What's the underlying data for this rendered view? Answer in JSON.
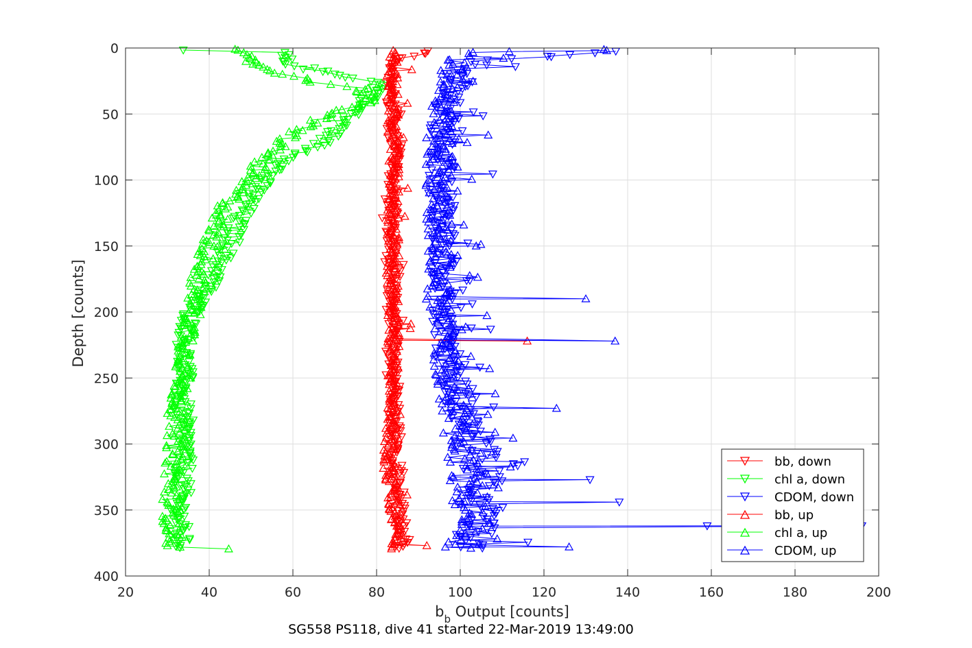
{
  "chart_data": {
    "type": "scatter",
    "xlabel_main": "b",
    "xlabel_sub": "b",
    "xlabel_rest": " Output [counts]",
    "ylabel": "Depth [counts]",
    "caption": "SG558 PS118, dive 41 started 22-Mar-2019 13:49:00",
    "xlim": [
      20,
      200
    ],
    "ylim": [
      0,
      400
    ],
    "y_reversed": true,
    "grid": true,
    "legend_position": "bottom-right",
    "x_ticks": [
      "20",
      "40",
      "60",
      "80",
      "100",
      "120",
      "140",
      "160",
      "180",
      "200"
    ],
    "y_ticks": [
      "0",
      "50",
      "100",
      "150",
      "200",
      "250",
      "300",
      "350",
      "400"
    ],
    "series": [
      {
        "name": "bb, down",
        "color": "#FF0000",
        "marker": "triangle-down",
        "x": [
          93,
          84,
          84,
          83.5,
          83,
          85,
          83.5,
          84,
          86,
          84,
          83,
          84.5,
          83.5,
          84,
          83.5,
          84,
          83,
          84.5,
          83.5,
          84,
          83.5,
          84,
          84.5,
          83.5,
          84,
          83.5,
          85,
          84.5,
          84,
          85,
          85,
          84.5,
          85.5,
          85,
          86,
          85.5,
          86,
          86.5,
          86,
          87,
          86,
          86
        ],
        "y": [
          2,
          10,
          20,
          30,
          40,
          50,
          60,
          70,
          80,
          90,
          100,
          110,
          120,
          130,
          140,
          150,
          160,
          170,
          180,
          190,
          200,
          210,
          222,
          230,
          240,
          250,
          260,
          270,
          280,
          290,
          300,
          310,
          320,
          330,
          340,
          350,
          355,
          360,
          365,
          370,
          375,
          379
        ]
      },
      {
        "name": "chl a, down",
        "color": "#00FF00",
        "marker": "triangle-down",
        "x": [
          57,
          58,
          63,
          70,
          80,
          81,
          78,
          74,
          71,
          68,
          62,
          57,
          53,
          51,
          49,
          47,
          46,
          45,
          44,
          43,
          42,
          40,
          38,
          36,
          35,
          34.5,
          34,
          34,
          34,
          33.5,
          33.5,
          34,
          34,
          34.5,
          34,
          34,
          33.5,
          33.5,
          33,
          33,
          33.5
        ],
        "y": [
          2,
          10,
          15,
          20,
          25,
          30,
          40,
          50,
          60,
          70,
          80,
          90,
          100,
          110,
          120,
          130,
          140,
          150,
          155,
          160,
          170,
          180,
          190,
          200,
          210,
          220,
          230,
          240,
          250,
          260,
          270,
          280,
          290,
          300,
          310,
          320,
          330,
          340,
          350,
          360,
          379
        ]
      },
      {
        "name": "CDOM, down",
        "color": "#0000FF",
        "marker": "triangle-down",
        "x": [
          141,
          105,
          101,
          99,
          97,
          97,
          96,
          96,
          95.5,
          95.5,
          96,
          96,
          96,
          96.5,
          96,
          96,
          96.5,
          97,
          97,
          98,
          99,
          100,
          101,
          102,
          103,
          104,
          104,
          103,
          103,
          102,
          102
        ],
        "y": [
          2,
          10,
          20,
          30,
          40,
          50,
          60,
          80,
          100,
          120,
          140,
          160,
          170,
          180,
          190,
          200,
          210,
          220,
          230,
          240,
          260,
          270,
          280,
          290,
          300,
          320,
          330,
          340,
          350,
          360,
          379
        ]
      },
      {
        "name": "bb, up",
        "color": "#FF0000",
        "marker": "triangle-up",
        "x": [
          85,
          85,
          84.5,
          84,
          84,
          83.5,
          83,
          83,
          83,
          83.5,
          83.5,
          84,
          84,
          84,
          84,
          84,
          84,
          84,
          84,
          84,
          84,
          83.5,
          84,
          84,
          84,
          84,
          84,
          84,
          84,
          83.5
        ],
        "y": [
          379,
          370,
          360,
          350,
          340,
          330,
          320,
          310,
          300,
          290,
          280,
          270,
          260,
          250,
          240,
          230,
          220,
          210,
          200,
          190,
          180,
          170,
          160,
          150,
          140,
          130,
          120,
          100,
          50,
          2
        ]
      },
      {
        "name": "chl a, up",
        "color": "#00FF00",
        "marker": "triangle-up",
        "x": [
          31.5,
          31.5,
          31,
          31,
          31,
          31,
          31.5,
          31.5,
          32,
          32,
          32,
          32.5,
          33,
          33.5,
          34,
          35,
          36,
          37,
          39,
          41,
          44,
          49,
          53,
          58,
          65,
          74,
          79,
          76,
          64,
          53,
          49,
          47,
          44
        ],
        "y": [
          379,
          370,
          360,
          350,
          340,
          330,
          320,
          310,
          300,
          290,
          280,
          270,
          260,
          250,
          240,
          220,
          200,
          180,
          160,
          140,
          120,
          100,
          85,
          70,
          55,
          45,
          38,
          30,
          25,
          15,
          8,
          4,
          1
        ]
      },
      {
        "name": "CDOM, up",
        "color": "#0000FF",
        "marker": "triangle-up",
        "x": [
          98,
          100,
          100,
          101,
          101,
          101,
          100,
          100,
          100,
          99,
          99,
          98,
          98,
          97,
          97,
          96.5,
          96,
          95,
          95,
          95,
          95,
          95,
          95,
          95,
          95,
          95.5,
          96,
          96,
          97,
          98,
          99,
          100,
          102,
          135
        ],
        "y": [
          379,
          370,
          360,
          350,
          340,
          330,
          320,
          310,
          300,
          290,
          280,
          270,
          260,
          250,
          240,
          230,
          220,
          200,
          180,
          160,
          140,
          120,
          100,
          80,
          70,
          60,
          50,
          40,
          30,
          20,
          10,
          5,
          3,
          1
        ]
      }
    ],
    "spikes": [
      {
        "series": 2,
        "points": [
          [
            108,
            360
          ],
          [
            159,
            362
          ],
          [
            196,
            362
          ],
          [
            131,
            327
          ],
          [
            138,
            344
          ]
        ]
      },
      {
        "series": 5,
        "points": [
          [
            137,
            222
          ],
          [
            130,
            190
          ],
          [
            123,
            273
          ],
          [
            135,
            2
          ],
          [
            126,
            378
          ]
        ]
      },
      {
        "series": 3,
        "points": [
          [
            116,
            222
          ],
          [
            92,
            377
          ]
        ]
      }
    ]
  }
}
